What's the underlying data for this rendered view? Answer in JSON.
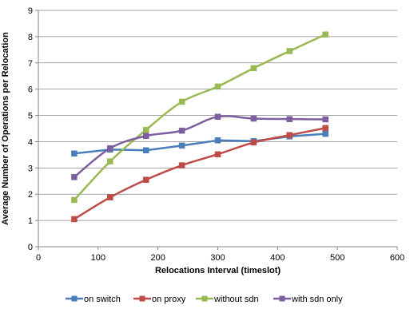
{
  "chart_data": {
    "type": "line",
    "title": "",
    "xlabel": "Relocations Interval (timeslot)",
    "ylabel": "Average Number of Operations per Relocation",
    "xlim": [
      0,
      600
    ],
    "ylim": [
      0,
      9
    ],
    "x_ticks": [
      0,
      100,
      200,
      300,
      400,
      500,
      600
    ],
    "y_ticks": [
      0,
      1,
      2,
      3,
      4,
      5,
      6,
      7,
      8,
      9
    ],
    "grid": "horizontal",
    "legend_position": "bottom",
    "x": [
      60,
      120,
      180,
      240,
      300,
      360,
      420,
      480
    ],
    "series": [
      {
        "name": "on switch",
        "color": "#4a7ebb",
        "smooth": false,
        "values": [
          3.55,
          3.7,
          3.67,
          3.85,
          4.05,
          4.02,
          4.2,
          4.3
        ]
      },
      {
        "name": "on proxy",
        "color": "#be4b48",
        "smooth": true,
        "values": [
          1.05,
          1.88,
          2.55,
          3.1,
          3.52,
          3.97,
          4.25,
          4.52
        ]
      },
      {
        "name": "without sdn",
        "color": "#98b954",
        "smooth": true,
        "values": [
          1.78,
          3.25,
          4.45,
          5.52,
          6.1,
          6.8,
          7.45,
          8.08
        ]
      },
      {
        "name": "with sdn only",
        "color": "#7d5fa0",
        "smooth": true,
        "values": [
          2.65,
          3.75,
          4.22,
          4.42,
          4.95,
          4.88,
          4.86,
          4.85
        ]
      }
    ]
  }
}
